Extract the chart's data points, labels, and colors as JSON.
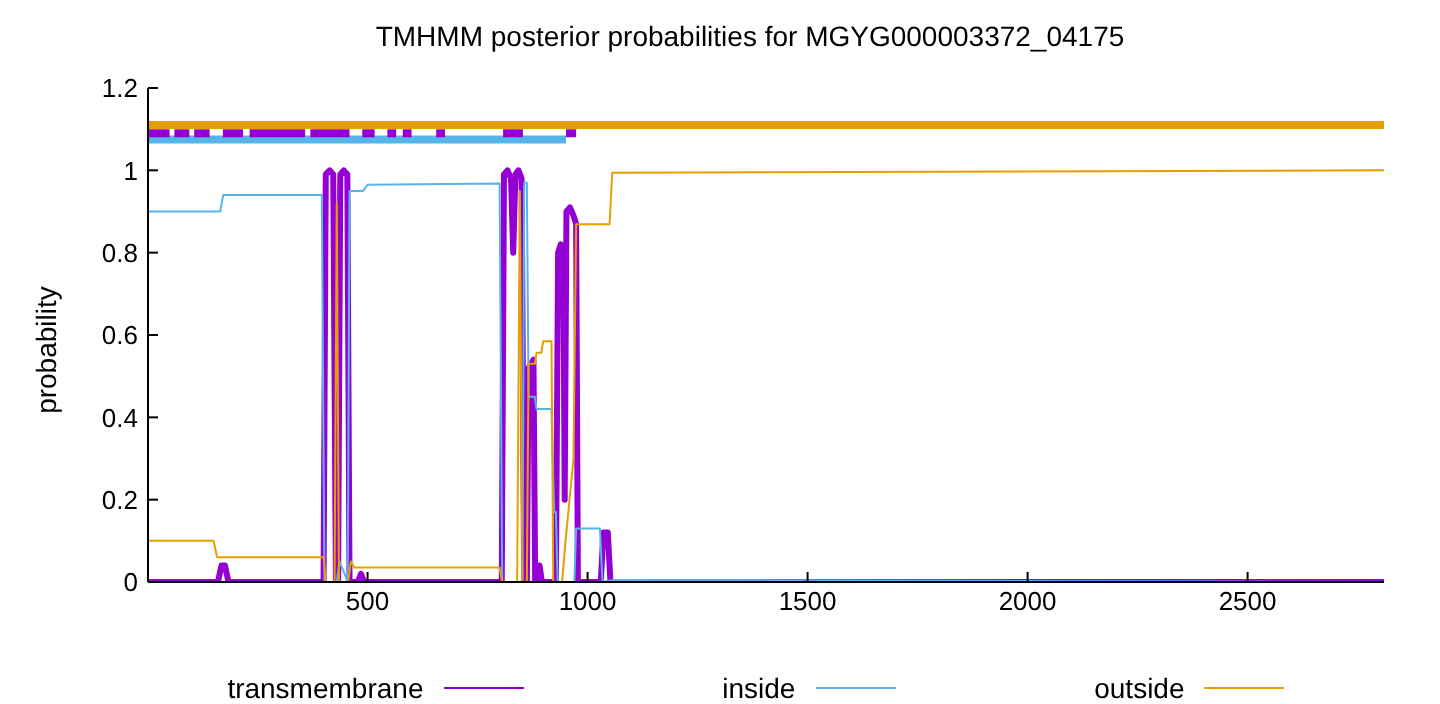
{
  "chart_data": {
    "type": "line",
    "title": "TMHMM posterior probabilities for MGYG000003372_04175",
    "ylabel": "probability",
    "xlim": [
      1,
      2810
    ],
    "xticks": [
      500,
      1000,
      1500,
      2000,
      2500
    ],
    "ylim": [
      0,
      1.2
    ],
    "yticks": [
      0,
      0.2,
      0.4,
      0.6,
      0.8,
      1,
      1.2
    ],
    "grid": false,
    "legend": "bottom",
    "marker": "none",
    "line_style": "solid",
    "series": [
      {
        "color": "#e69f00",
        "x": [
          1,
          2810
        ],
        "values": [
          1.11,
          1.11
        ]
      },
      {
        "color": "#56b4e9",
        "x": [
          1,
          951
        ],
        "values": [
          1.075,
          1.075
        ]
      },
      {
        "color": "#9400d3",
        "x": [
          1,
          50
        ],
        "values": [
          1.09,
          1.09
        ]
      },
      {
        "color": "#9400d3",
        "x": [
          61,
          95
        ],
        "values": [
          1.09,
          1.09
        ]
      },
      {
        "color": "#9400d3",
        "x": [
          106,
          141
        ],
        "values": [
          1.09,
          1.09
        ]
      },
      {
        "color": "#9400d3",
        "x": [
          171,
          217
        ],
        "values": [
          1.09,
          1.09
        ]
      },
      {
        "color": "#9400d3",
        "x": [
          232,
          358
        ],
        "values": [
          1.09,
          1.09
        ]
      },
      {
        "color": "#9400d3",
        "x": [
          370,
          459
        ],
        "values": [
          1.09,
          1.09
        ]
      },
      {
        "color": "#9400d3",
        "x": [
          488,
          516
        ],
        "values": [
          1.09,
          1.09
        ]
      },
      {
        "color": "#9400d3",
        "x": [
          545,
          565
        ],
        "values": [
          1.09,
          1.09
        ]
      },
      {
        "color": "#9400d3",
        "x": [
          580,
          600
        ],
        "values": [
          1.09,
          1.09
        ]
      },
      {
        "color": "#9400d3",
        "x": [
          656,
          676
        ],
        "values": [
          1.09,
          1.09
        ]
      },
      {
        "color": "#9400d3",
        "x": [
          808,
          853
        ],
        "values": [
          1.09,
          1.09
        ]
      },
      {
        "color": "#9400d3",
        "x": [
          951,
          974
        ],
        "values": [
          1.09,
          1.09
        ]
      },
      {
        "name": "transmembrane",
        "color": "#9400d3",
        "x": [
          1,
          160,
          168,
          176,
          184,
          400,
          405,
          414,
          422,
          428,
          433,
          438,
          446,
          454,
          459,
          478,
          485,
          492,
          805,
          810,
          818,
          826,
          831,
          836,
          843,
          850,
          856,
          862,
          866,
          872,
          877,
          881,
          886,
          891,
          896,
          928,
          933,
          939,
          945,
          948,
          952,
          960,
          968,
          974,
          978,
          1030,
          1036,
          1046,
          1052,
          2810
        ],
        "values": [
          0,
          0,
          0.04,
          0.04,
          0,
          0,
          0.99,
          1.0,
          0.99,
          0,
          0,
          0.99,
          1.0,
          0.99,
          0,
          0,
          0.02,
          0,
          0,
          0.99,
          1.0,
          0.98,
          0.8,
          0.99,
          1.0,
          0.98,
          0,
          0,
          0.52,
          0.53,
          0.54,
          0,
          0,
          0.04,
          0,
          0,
          0.8,
          0.82,
          0.8,
          0.2,
          0.9,
          0.91,
          0.89,
          0.87,
          0,
          0,
          0.12,
          0.12,
          0,
          0
        ]
      },
      {
        "name": "inside",
        "color": "#56b4e9",
        "x": [
          1,
          165,
          172,
          396,
          402,
          430,
          436,
          455,
          459,
          490,
          500,
          800,
          806,
          852,
          856,
          862,
          866,
          880,
          884,
          918,
          924,
          928,
          932,
          970,
          974,
          1028,
          1034,
          1060,
          2810
        ],
        "values": [
          0.9,
          0.9,
          0.94,
          0.94,
          0,
          0,
          0.05,
          0,
          0.95,
          0.95,
          0.965,
          0.968,
          0,
          0,
          0.97,
          0.97,
          0.45,
          0.45,
          0.42,
          0.42,
          0.17,
          0.17,
          0,
          0,
          0.13,
          0.13,
          0,
          0.005,
          0
        ]
      },
      {
        "name": "outside",
        "color": "#e69f00",
        "x": [
          1,
          150,
          158,
          400,
          405,
          425,
          430,
          435,
          456,
          462,
          470,
          800,
          806,
          840,
          846,
          852,
          862,
          866,
          880,
          884,
          895,
          899,
          918,
          922,
          942,
          950,
          968,
          974,
          1050,
          1056,
          2810
        ],
        "values": [
          0.1,
          0.1,
          0.06,
          0.06,
          0,
          0,
          0.92,
          0,
          0,
          0.05,
          0.035,
          0.035,
          0,
          0,
          0.95,
          0,
          0,
          0.53,
          0.53,
          0.557,
          0.557,
          0.585,
          0.585,
          0,
          0,
          0.1,
          0.3,
          0.869,
          0.869,
          0.994,
          1.0
        ]
      }
    ]
  }
}
